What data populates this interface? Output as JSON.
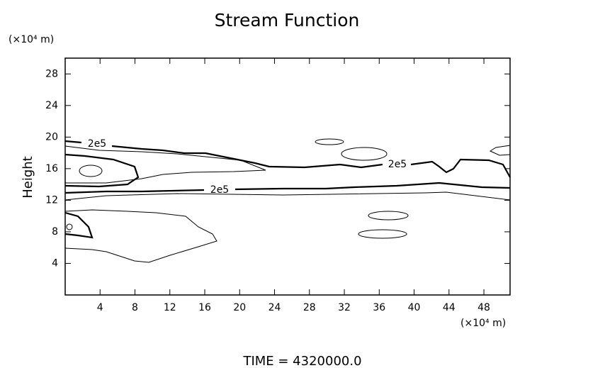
{
  "chart_data": {
    "type": "contour",
    "title": "Stream Function",
    "y_unit": "(×10⁴ m)",
    "x_unit": "(×10⁴ m)",
    "ylabel": "Height",
    "footer": "TIME  =  4320000.0",
    "xlim": [
      0,
      51
    ],
    "xticks": [
      4,
      8,
      12,
      16,
      20,
      24,
      28,
      32,
      36,
      40,
      44,
      48
    ],
    "ylim": [
      0,
      30
    ],
    "yticks": [
      4,
      8,
      12,
      16,
      20,
      24,
      28
    ],
    "contour_labels": [
      "2e5",
      "2e5",
      "2e5"
    ],
    "color": "#000000"
  }
}
